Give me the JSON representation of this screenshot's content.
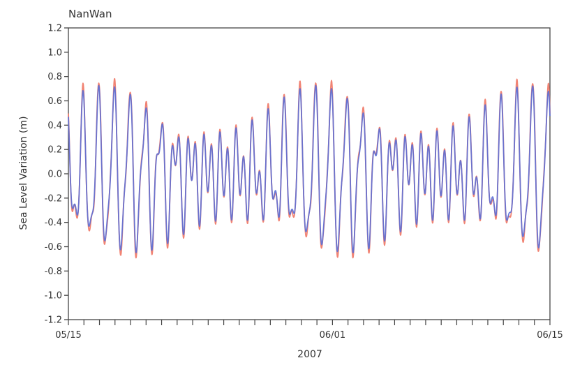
{
  "chart_data": {
    "type": "line",
    "title": "NanWan",
    "xlabel": "2007",
    "ylabel": "Sea Level Variation (m)",
    "xlim": [
      "05/15",
      "06/15"
    ],
    "ylim": [
      -1.2,
      1.2
    ],
    "yticks": [
      -1.2,
      -1.0,
      -0.8,
      -0.6,
      -0.4,
      -0.2,
      0.0,
      0.2,
      0.4,
      0.6,
      0.8,
      1.0,
      1.2
    ],
    "ytick_labels": [
      "-1.2",
      "-1.0",
      "-0.8",
      "-0.6",
      "-0.4",
      "-0.2",
      "0.0",
      "0.2",
      "0.4",
      "0.6",
      "0.8",
      "1.0",
      "1.2"
    ],
    "xtick_labels": [
      {
        "date": "2007-05-15",
        "label": "05/15"
      },
      {
        "date": "2007-06-01",
        "label": "06/01"
      },
      {
        "date": "2007-06-15",
        "label": "06/15"
      }
    ],
    "minor_tick_interval_days": 1,
    "grid": false,
    "series": [
      {
        "color": "#f07c6c"
      },
      {
        "color": "#5b6fd6"
      }
    ],
    "signal_model": {
      "mean": 0.0,
      "diurnal_amplitude_range": [
        0.12,
        0.6
      ],
      "semidiurnal_amplitude_range": [
        0.08,
        0.28
      ],
      "amplitude_maxima": [
        "2007-05-18",
        "2007-06-03",
        "2007-06-15"
      ],
      "amplitude_minimum": "2007-05-25"
    }
  }
}
